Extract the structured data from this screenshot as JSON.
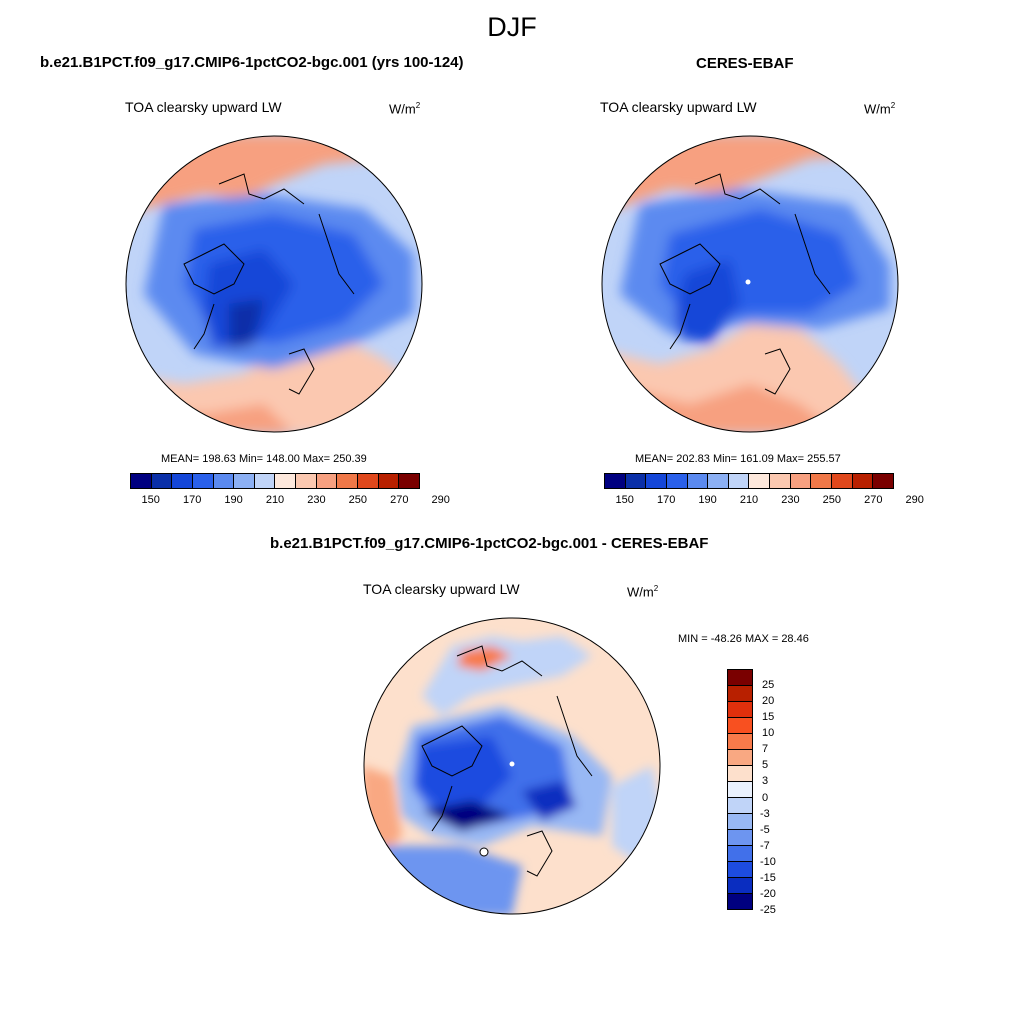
{
  "figure": {
    "season": "DJF"
  },
  "panels": [
    {
      "id": "model",
      "title": "b.e21.B1PCT.f09_g17.CMIP6-1pctCO2-bgc.001 (yrs 100-124)",
      "variable": "TOA clearsky upward LW",
      "units_base": "W/m",
      "units_exp": "2",
      "stats_text": "MEAN= 198.63  Min= 148.00  Max= 250.39",
      "mean": 198.63,
      "min": 148.0,
      "max": 250.39
    },
    {
      "id": "obs",
      "title": "CERES-EBAF",
      "variable": "TOA clearsky upward LW",
      "units_base": "W/m",
      "units_exp": "2",
      "stats_text": "MEAN= 202.83  Min= 161.09  Max= 255.57",
      "mean": 202.83,
      "min": 161.09,
      "max": 255.57
    },
    {
      "id": "diff",
      "title": "b.e21.B1PCT.f09_g17.CMIP6-1pctCO2-bgc.001 - CERES-EBAF",
      "variable": "TOA clearsky upward LW",
      "units_base": "W/m",
      "units_exp": "2",
      "stats_text": "MIN = -48.26 MAX =  28.46",
      "min": -48.26,
      "max": 28.46
    }
  ],
  "colorbars": {
    "absolute": {
      "colors": [
        "#000080",
        "#0a2fa8",
        "#1446d8",
        "#2a60ea",
        "#5b8af0",
        "#8cb0f4",
        "#c0d4f8",
        "#fde8dc",
        "#fbc8b0",
        "#f7a080",
        "#f07848",
        "#e0481c",
        "#b82000",
        "#7a0000"
      ],
      "labels": [
        "150",
        "170",
        "190",
        "210",
        "230",
        "250",
        "270",
        "290"
      ]
    },
    "difference": {
      "colors": [
        "#7a0000",
        "#b82000",
        "#e0300c",
        "#f85020",
        "#f87a4a",
        "#f9a882",
        "#fde0cc",
        "#eaf1fd",
        "#c0d4f8",
        "#98b8f4",
        "#6d95f0",
        "#4170ea",
        "#1d4ce0",
        "#0a2dc0",
        "#000080"
      ],
      "labels": [
        "25",
        "20",
        "15",
        "10",
        "7",
        "5",
        "3",
        "0",
        "-3",
        "-5",
        "-7",
        "-10",
        "-15",
        "-20",
        "-25"
      ]
    }
  }
}
